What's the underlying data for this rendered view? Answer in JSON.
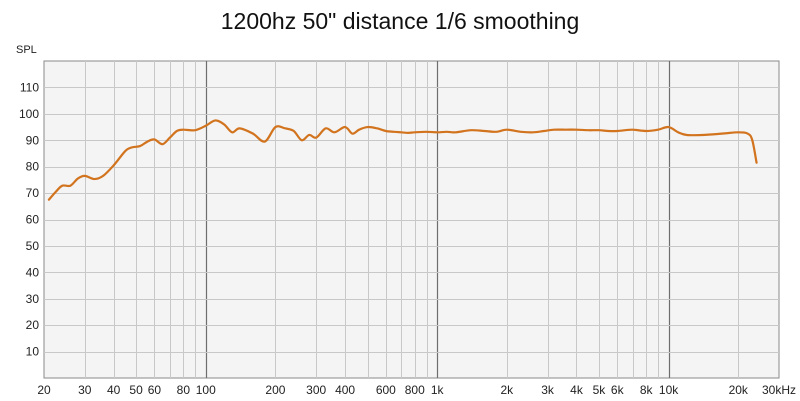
{
  "chart_data": {
    "type": "line",
    "title": "1200hz 50\" distance 1/6 smoothing",
    "ylabel": "SPL",
    "xlabel": "",
    "x_scale": "log",
    "xlim": [
      20,
      30000
    ],
    "ylim": [
      0,
      120
    ],
    "grid": true,
    "y_ticks": [
      10,
      20,
      30,
      40,
      50,
      60,
      70,
      80,
      90,
      100,
      110
    ],
    "x_ticks": [
      {
        "value": 20,
        "label": "20"
      },
      {
        "value": 30,
        "label": "30"
      },
      {
        "value": 40,
        "label": "40"
      },
      {
        "value": 50,
        "label": "50"
      },
      {
        "value": 60,
        "label": "60"
      },
      {
        "value": 80,
        "label": "80"
      },
      {
        "value": 100,
        "label": "100"
      },
      {
        "value": 200,
        "label": "200"
      },
      {
        "value": 300,
        "label": "300"
      },
      {
        "value": 400,
        "label": "400"
      },
      {
        "value": 600,
        "label": "600"
      },
      {
        "value": 800,
        "label": "800"
      },
      {
        "value": 1000,
        "label": "1k"
      },
      {
        "value": 2000,
        "label": "2k"
      },
      {
        "value": 3000,
        "label": "3k"
      },
      {
        "value": 4000,
        "label": "4k"
      },
      {
        "value": 5000,
        "label": "5k"
      },
      {
        "value": 6000,
        "label": "6k"
      },
      {
        "value": 8000,
        "label": "8k"
      },
      {
        "value": 10000,
        "label": "10k"
      },
      {
        "value": 20000,
        "label": "20k"
      },
      {
        "value": 30000,
        "label": "30kHz"
      }
    ],
    "x_ticks_bold": [
      100,
      1000,
      10000
    ],
    "series": [
      {
        "color": "#d2731e",
        "x": [
          21,
          22.5,
          24,
          26,
          28,
          30,
          33,
          36,
          40,
          45,
          48,
          52,
          56,
          60,
          65,
          70,
          75,
          80,
          90,
          100,
          110,
          120,
          130,
          140,
          160,
          180,
          200,
          220,
          240,
          260,
          280,
          300,
          330,
          360,
          400,
          430,
          460,
          500,
          550,
          600,
          650,
          700,
          750,
          800,
          900,
          1000,
          1100,
          1200,
          1400,
          1600,
          1800,
          2000,
          2300,
          2600,
          2900,
          3200,
          3600,
          4000,
          4500,
          5000,
          5500,
          6000,
          6500,
          7000,
          8000,
          9000,
          10000,
          11000,
          12000,
          14000,
          17000,
          20000,
          22000,
          23000,
          24000
        ],
        "values": [
          67.5,
          70.5,
          72.8,
          72.8,
          75.5,
          76.5,
          75.3,
          76.5,
          80.5,
          86.0,
          87.3,
          87.8,
          89.5,
          90.3,
          88.5,
          91.0,
          93.5,
          94.0,
          93.8,
          95.5,
          97.5,
          96.0,
          93.0,
          94.5,
          92.5,
          89.5,
          95.0,
          94.5,
          93.5,
          90.0,
          92.0,
          91.0,
          94.5,
          93.0,
          95.0,
          92.5,
          94.0,
          95.0,
          94.5,
          93.5,
          93.2,
          93.0,
          92.8,
          93.0,
          93.2,
          93.0,
          93.2,
          93.0,
          93.8,
          93.5,
          93.2,
          94.0,
          93.2,
          93.0,
          93.5,
          94.0,
          94.0,
          94.0,
          93.8,
          93.8,
          93.5,
          93.5,
          93.8,
          94.0,
          93.5,
          94.0,
          95.0,
          93.0,
          92.0,
          92.0,
          92.5,
          93.0,
          92.5,
          90.0,
          81.5
        ]
      }
    ]
  }
}
